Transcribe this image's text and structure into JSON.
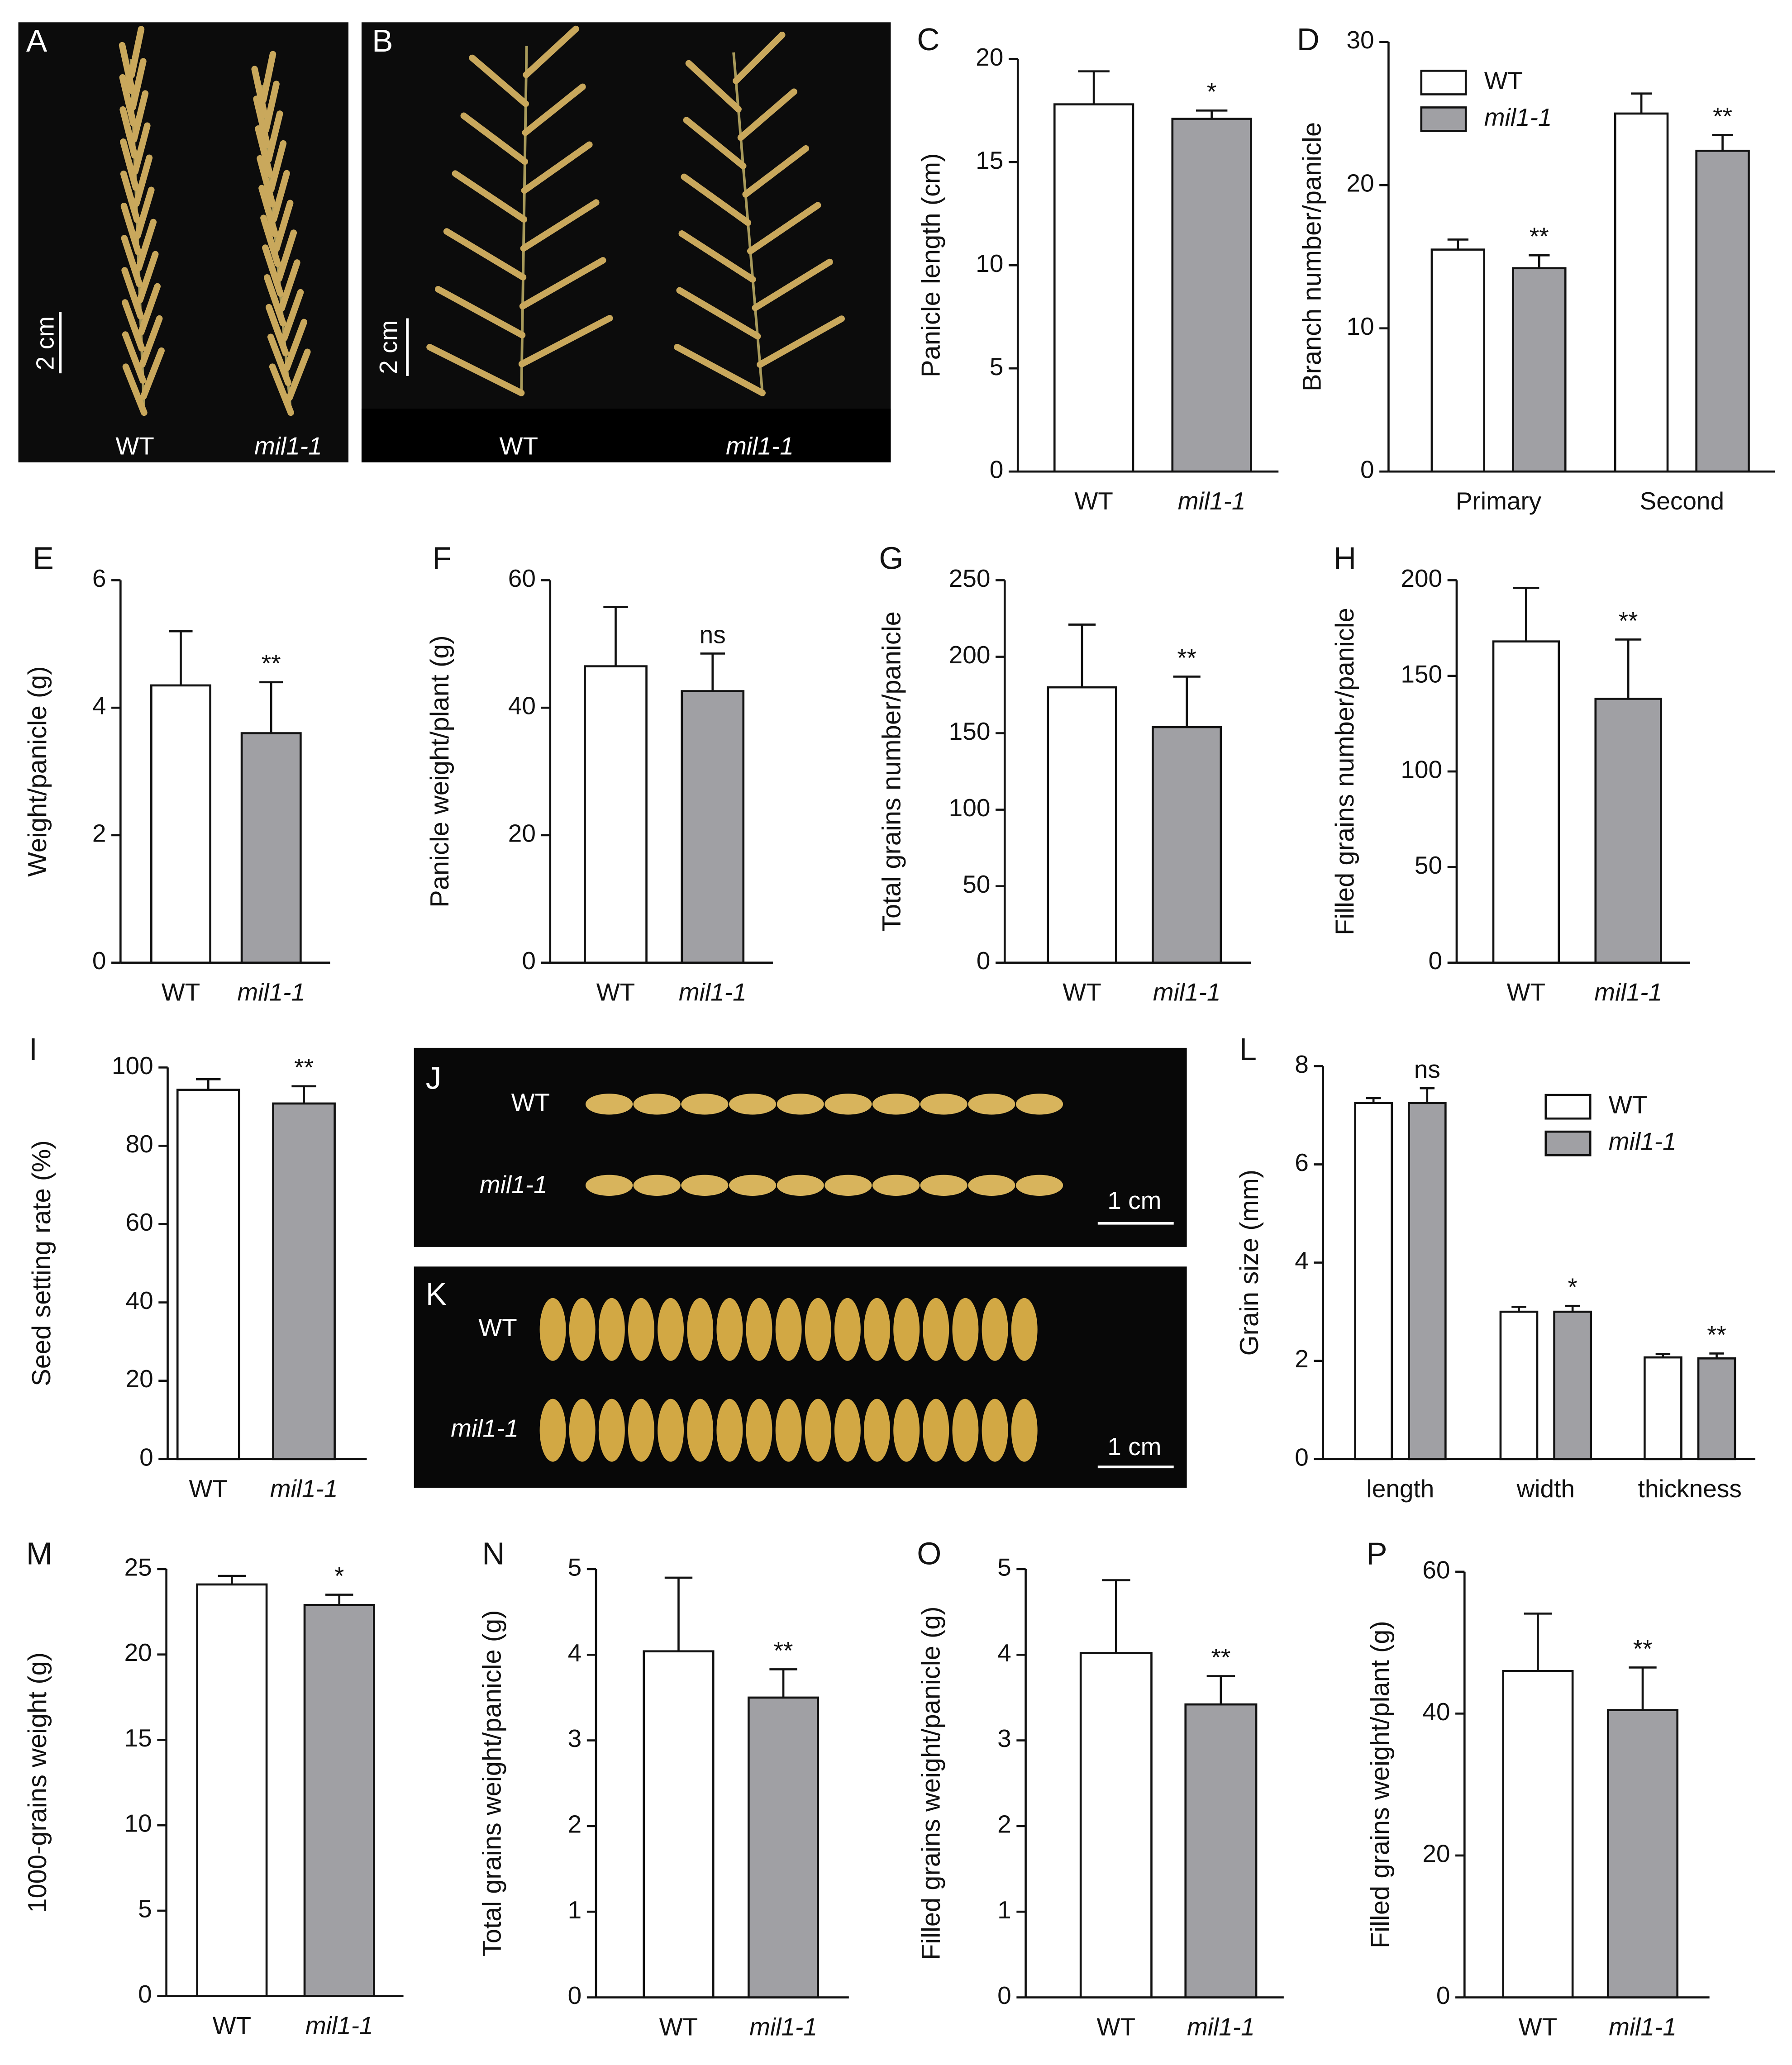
{
  "images": [
    {
      "label": "A",
      "texts": [
        "2 cm",
        "WT",
        "mil1-1"
      ]
    },
    {
      "label": "B",
      "texts": [
        "2 cm",
        "WT",
        "mil1-1"
      ]
    },
    {
      "label": "J",
      "texts": [
        "WT",
        "mil1-1",
        "1 cm"
      ]
    },
    {
      "label": "K",
      "texts": [
        "WT",
        "mil1-1",
        "1 cm"
      ]
    }
  ],
  "chart_data": [
    {
      "type": "bar",
      "panel": "C",
      "ylabel": "Panicle length (cm)",
      "categories": [
        "WT",
        "mil1-1"
      ],
      "values": [
        17.8,
        17.1
      ],
      "errors": [
        1.6,
        0.4
      ],
      "colors": [
        "#ffffff",
        "#a0a0a4"
      ],
      "annotations": [
        null,
        "*"
      ],
      "ylim": [
        0,
        20
      ],
      "yticks": [
        0,
        5,
        10,
        15,
        20
      ]
    },
    {
      "type": "bar",
      "panel": "D",
      "ylabel": "Branch number/panicle",
      "categories": [
        "Primary",
        "Second"
      ],
      "series": [
        {
          "name": "WT",
          "color": "#ffffff",
          "values": [
            15.5,
            25.0
          ],
          "errors": [
            0.7,
            1.4
          ]
        },
        {
          "name": "mil1-1",
          "color": "#a0a0a4",
          "values": [
            14.2,
            22.4
          ],
          "errors": [
            0.9,
            1.1
          ],
          "annotations": [
            "**",
            "**"
          ]
        }
      ],
      "ylim": [
        0,
        30
      ],
      "yticks": [
        0,
        10,
        20,
        30
      ]
    },
    {
      "type": "bar",
      "panel": "E",
      "ylabel": "Weight/panicle (g)",
      "categories": [
        "WT",
        "mil1-1"
      ],
      "values": [
        4.35,
        3.6
      ],
      "errors": [
        0.85,
        0.8
      ],
      "colors": [
        "#ffffff",
        "#a0a0a4"
      ],
      "annotations": [
        null,
        "**"
      ],
      "ylim": [
        0,
        6
      ],
      "yticks": [
        0,
        2,
        4,
        6
      ]
    },
    {
      "type": "bar",
      "panel": "F",
      "ylabel": "Panicle weight/plant (g)",
      "categories": [
        "WT",
        "mil1-1"
      ],
      "values": [
        46.5,
        42.6
      ],
      "errors": [
        9.3,
        5.9
      ],
      "colors": [
        "#ffffff",
        "#a0a0a4"
      ],
      "annotations": [
        null,
        "ns"
      ],
      "ylim": [
        0,
        60
      ],
      "yticks": [
        0,
        20,
        40,
        60
      ]
    },
    {
      "type": "bar",
      "panel": "G",
      "ylabel": "Total grains number/panicle",
      "categories": [
        "WT",
        "mil1-1"
      ],
      "values": [
        180,
        154
      ],
      "errors": [
        41,
        33
      ],
      "colors": [
        "#ffffff",
        "#a0a0a4"
      ],
      "annotations": [
        null,
        "**"
      ],
      "ylim": [
        0,
        250
      ],
      "yticks": [
        0,
        50,
        100,
        150,
        200,
        250
      ]
    },
    {
      "type": "bar",
      "panel": "H",
      "ylabel": "Filled grains number/panicle",
      "categories": [
        "WT",
        "mil1-1"
      ],
      "values": [
        168,
        138
      ],
      "errors": [
        28,
        31
      ],
      "colors": [
        "#ffffff",
        "#a0a0a4"
      ],
      "annotations": [
        null,
        "**"
      ],
      "ylim": [
        0,
        200
      ],
      "yticks": [
        0,
        50,
        100,
        150,
        200
      ]
    },
    {
      "type": "bar",
      "panel": "I",
      "ylabel": "Seed setting rate (%)",
      "categories": [
        "WT",
        "mil1-1"
      ],
      "values": [
        94.3,
        90.8
      ],
      "errors": [
        2.7,
        4.4
      ],
      "colors": [
        "#ffffff",
        "#a0a0a4"
      ],
      "annotations": [
        null,
        "**"
      ],
      "ylim": [
        0,
        100
      ],
      "yticks": [
        0,
        20,
        40,
        60,
        80,
        100
      ]
    },
    {
      "type": "bar",
      "panel": "L",
      "ylabel": "Grain size (mm)",
      "categories": [
        "length",
        "width",
        "thickness"
      ],
      "series": [
        {
          "name": "WT",
          "color": "#ffffff",
          "values": [
            7.25,
            3.0,
            2.07
          ],
          "errors": [
            0.1,
            0.1,
            0.07
          ]
        },
        {
          "name": "mil1-1",
          "color": "#a0a0a4",
          "values": [
            7.25,
            3.0,
            2.05
          ],
          "errors": [
            0.3,
            0.12,
            0.1
          ],
          "annotations": [
            "ns",
            "*",
            "**"
          ]
        }
      ],
      "ylim": [
        0,
        8
      ],
      "yticks": [
        0,
        2,
        4,
        6,
        8
      ]
    },
    {
      "type": "bar",
      "panel": "M",
      "ylabel": "1000-grains weight (g)",
      "categories": [
        "WT",
        "mil1-1"
      ],
      "values": [
        24.1,
        22.9
      ],
      "errors": [
        0.5,
        0.6
      ],
      "colors": [
        "#ffffff",
        "#a0a0a4"
      ],
      "annotations": [
        null,
        "*"
      ],
      "ylim": [
        0,
        25
      ],
      "yticks": [
        0,
        5,
        10,
        15,
        20,
        25
      ]
    },
    {
      "type": "bar",
      "panel": "N",
      "ylabel": "Total grains weight/panicle (g)",
      "categories": [
        "WT",
        "mil1-1"
      ],
      "values": [
        4.04,
        3.5
      ],
      "errors": [
        0.86,
        0.33
      ],
      "colors": [
        "#ffffff",
        "#a0a0a4"
      ],
      "annotations": [
        null,
        "**"
      ],
      "ylim": [
        0,
        5
      ],
      "yticks": [
        0,
        1,
        2,
        3,
        4,
        5
      ]
    },
    {
      "type": "bar",
      "panel": "O",
      "ylabel": "Filled grains weight/panicle (g)",
      "categories": [
        "WT",
        "mil1-1"
      ],
      "values": [
        4.02,
        3.42
      ],
      "errors": [
        0.85,
        0.33
      ],
      "colors": [
        "#ffffff",
        "#a0a0a4"
      ],
      "annotations": [
        null,
        "**"
      ],
      "ylim": [
        0,
        5
      ],
      "yticks": [
        0,
        1,
        2,
        3,
        4,
        5
      ]
    },
    {
      "type": "bar",
      "panel": "P",
      "ylabel": "Filled grains weight/plant (g)",
      "categories": [
        "WT",
        "mil1-1"
      ],
      "values": [
        46.0,
        40.5
      ],
      "errors": [
        8.1,
        6.0
      ],
      "colors": [
        "#ffffff",
        "#a0a0a4"
      ],
      "annotations": [
        null,
        "**"
      ],
      "ylim": [
        0,
        60
      ],
      "yticks": [
        0,
        20,
        40,
        60
      ]
    }
  ]
}
